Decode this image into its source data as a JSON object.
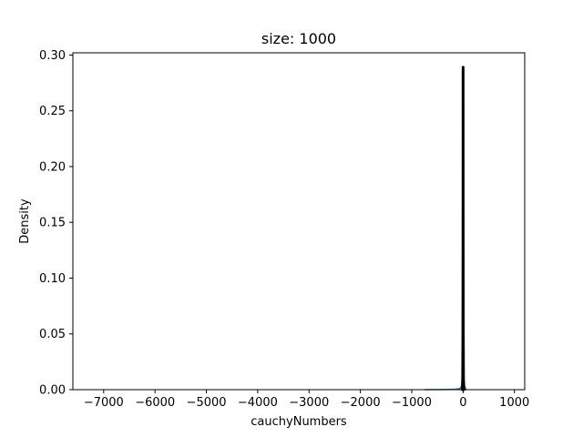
{
  "chart_data": {
    "type": "line",
    "title": "size: 1000",
    "xlabel": "cauchyNumbers",
    "ylabel": "Density",
    "xlim": [
      -7600,
      1200
    ],
    "ylim": [
      0,
      0.302
    ],
    "xticks": [
      -7000,
      -6000,
      -5000,
      -4000,
      -3000,
      -2000,
      -1000,
      0,
      1000
    ],
    "xtick_labels": [
      "−7000",
      "−6000",
      "−5000",
      "−4000",
      "−3000",
      "−2000",
      "−1000",
      "0",
      "1000"
    ],
    "yticks": [
      0.0,
      0.05,
      0.1,
      0.15,
      0.2,
      0.25,
      0.3
    ],
    "ytick_labels": [
      "0.00",
      "0.05",
      "0.10",
      "0.15",
      "0.20",
      "0.25",
      "0.30"
    ],
    "grid": false,
    "legend": "none",
    "series": [
      {
        "color": "#1f77b4",
        "x": [
          -750,
          -500,
          -300,
          -150,
          -60,
          -30,
          -15,
          -8,
          -4,
          -2,
          0,
          2,
          4,
          8,
          15,
          30,
          60
        ],
        "y": [
          0.0,
          0.0001,
          0.0002,
          0.0004,
          0.001,
          0.003,
          0.008,
          0.02,
          0.05,
          0.1,
          0.287,
          0.1,
          0.05,
          0.02,
          0.008,
          0.003,
          0.0
        ]
      },
      {
        "color": "#000000",
        "x": [
          -15,
          -8,
          -4,
          -2,
          -1,
          0,
          1,
          2,
          4,
          8,
          15
        ],
        "y": [
          0.0,
          0.01,
          0.05,
          0.12,
          0.2,
          0.289,
          0.2,
          0.12,
          0.05,
          0.01,
          0.0
        ]
      }
    ]
  }
}
